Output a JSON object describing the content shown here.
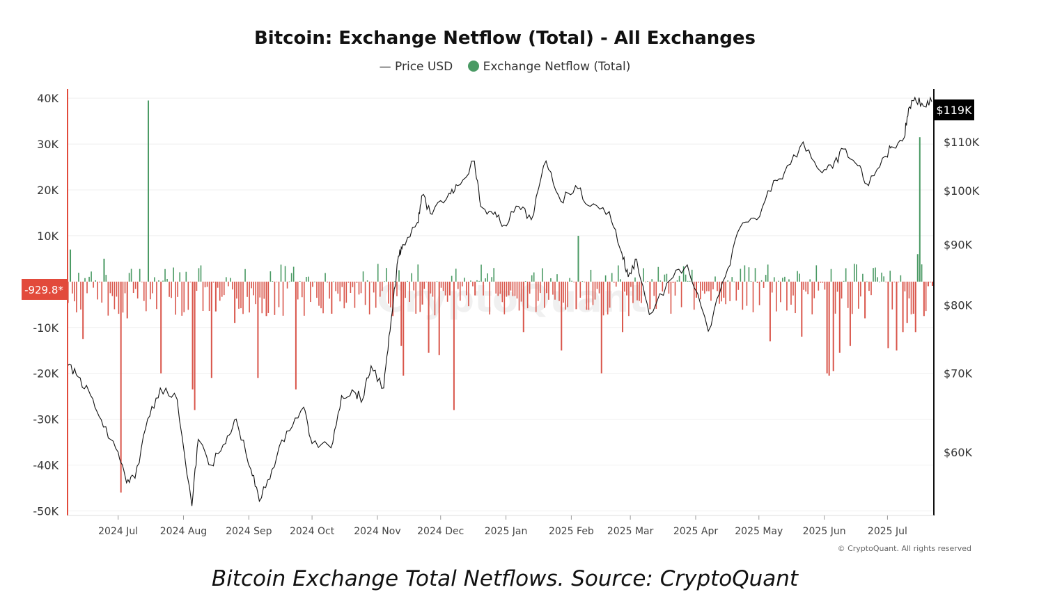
{
  "chart_data": {
    "type": "bar",
    "title": "Bitcoin: Exchange Netflow (Total) - All Exchanges",
    "source_caption": "Bitcoin Exchange Total Netflows. Source: CryptoQuant",
    "copyright": "© CryptoQuant. All rights reserved",
    "watermark": "CryptoQuant",
    "legend": [
      {
        "name": "— Price USD",
        "marker": "line"
      },
      {
        "name": "Exchange Netflow (Total)",
        "marker": "dot"
      }
    ],
    "legend_placement": "top-center",
    "grid": true,
    "x_axis": {
      "ticks": [
        "2024 Jul",
        "2024 Aug",
        "2024 Sep",
        "2024 Oct",
        "2024 Nov",
        "2024 Dec",
        "2025 Jan",
        "2025 Feb",
        "2025 Mar",
        "2025 Apr",
        "2025 May",
        "2025 Jun",
        "2025 Jul"
      ],
      "range": [
        "2024-06-07",
        "2025-07-23"
      ]
    },
    "y_left": {
      "label": "",
      "ticks": [
        "40K",
        "30K",
        "20K",
        "10K",
        "-10K",
        "-20K",
        "-30K",
        "-40K",
        "-50K"
      ],
      "tick_values": [
        40000,
        30000,
        20000,
        10000,
        -10000,
        -20000,
        -30000,
        -40000,
        -50000
      ],
      "range": [
        -51000,
        42000
      ],
      "current_value_label": "-929.8*",
      "current_value": -929.8
    },
    "y_right": {
      "label": "",
      "ticks": [
        "$110K",
        "$100K",
        "$90K",
        "$80K",
        "$70K",
        "$60K"
      ],
      "tick_values": [
        110000,
        100000,
        90000,
        80000,
        70000,
        60000
      ],
      "scale": "log",
      "range": [
        53000,
        122000
      ],
      "current_value_label": "$119K",
      "current_value": 119000
    },
    "series": [
      {
        "name": "Exchange Netflow (Total)",
        "kind": "bar",
        "color_positive": "#4a9a64",
        "color_negative": "#d9554a",
        "x": [
          "2024-06-08",
          "2024-06-14",
          "2024-06-24",
          "2024-07-02",
          "2024-07-05",
          "2024-07-15",
          "2024-07-21",
          "2024-08-05",
          "2024-08-06",
          "2024-08-14",
          "2024-08-16",
          "2024-08-25",
          "2024-09-05",
          "2024-09-09",
          "2024-09-23",
          "2024-10-10",
          "2024-11-08",
          "2024-11-12",
          "2024-11-13",
          "2024-11-22",
          "2024-11-25",
          "2024-11-30",
          "2024-12-05",
          "2024-12-07",
          "2024-12-17",
          "2025-01-02",
          "2025-01-09",
          "2025-01-20",
          "2025-01-27",
          "2025-02-03",
          "2025-02-04",
          "2025-02-15",
          "2025-02-25",
          "2025-02-27",
          "2025-03-10",
          "2025-04-01",
          "2025-04-14",
          "2025-05-06",
          "2025-05-21",
          "2025-06-02",
          "2025-06-03",
          "2025-06-05",
          "2025-06-08",
          "2025-06-13",
          "2025-06-20",
          "2025-07-01",
          "2025-07-05",
          "2025-07-08",
          "2025-07-10",
          "2025-07-13",
          "2025-07-14",
          "2025-07-15",
          "2025-07-16",
          "2025-07-18",
          "2025-07-20",
          "2025-07-22"
        ],
        "values": [
          7000,
          -12500,
          5000,
          -46000,
          -8000,
          39500,
          -20000,
          -23500,
          -28000,
          -21000,
          -6500,
          -9000,
          -21000,
          -7500,
          -23500,
          -7000,
          -7500,
          -14000,
          -20500,
          -5000,
          -15500,
          -16000,
          -3000,
          -28000,
          -3000,
          -3000,
          -11000,
          -2500,
          -15000,
          -6000,
          10000,
          -20000,
          -11000,
          -3000,
          -6000,
          -3500,
          -3500,
          -13000,
          -12000,
          -20000,
          -20500,
          -19500,
          -15500,
          -14000,
          -8000,
          -14500,
          -15000,
          -11000,
          -9000,
          -7000,
          -11000,
          6000,
          31500,
          -7500,
          -1000,
          -929.8
        ]
      },
      {
        "name": "Price USD",
        "kind": "line",
        "color": "#111111",
        "x": [
          "2024-06-07",
          "2024-06-12",
          "2024-06-18",
          "2024-06-24",
          "2024-07-01",
          "2024-07-05",
          "2024-07-09",
          "2024-07-15",
          "2024-07-21",
          "2024-07-29",
          "2024-08-05",
          "2024-08-08",
          "2024-08-14",
          "2024-08-21",
          "2024-08-26",
          "2024-09-02",
          "2024-09-06",
          "2024-09-12",
          "2024-09-19",
          "2024-09-27",
          "2024-10-01",
          "2024-10-10",
          "2024-10-15",
          "2024-10-21",
          "2024-10-25",
          "2024-10-29",
          "2024-11-04",
          "2024-11-07",
          "2024-11-11",
          "2024-11-13",
          "2024-11-20",
          "2024-11-22",
          "2024-11-27",
          "2024-12-05",
          "2024-12-09",
          "2024-12-17",
          "2024-12-20",
          "2024-12-26",
          "2024-12-31",
          "2025-01-07",
          "2025-01-13",
          "2025-01-20",
          "2025-01-27",
          "2025-02-03",
          "2025-02-10",
          "2025-02-19",
          "2025-02-25",
          "2025-02-28",
          "2025-03-04",
          "2025-03-10",
          "2025-03-20",
          "2025-03-28",
          "2025-04-07",
          "2025-04-15",
          "2025-04-22",
          "2025-04-30",
          "2025-05-08",
          "2025-05-13",
          "2025-05-22",
          "2025-05-30",
          "2025-06-05",
          "2025-06-10",
          "2025-06-17",
          "2025-06-22",
          "2025-06-30",
          "2025-07-03",
          "2025-07-09",
          "2025-07-11",
          "2025-07-14",
          "2025-07-18",
          "2025-07-22"
        ],
        "values": [
          71000,
          69500,
          67000,
          63000,
          60000,
          56500,
          57000,
          64000,
          68000,
          66500,
          54000,
          61500,
          58500,
          61000,
          64000,
          58000,
          54500,
          58000,
          62500,
          65500,
          61000,
          60500,
          67000,
          67500,
          66500,
          71000,
          68000,
          76000,
          88000,
          90000,
          94000,
          99000,
          95500,
          99500,
          101000,
          106000,
          97000,
          95500,
          93500,
          97000,
          94500,
          106000,
          98000,
          101000,
          97000,
          96000,
          88500,
          84500,
          87500,
          78500,
          84000,
          86500,
          76000,
          84500,
          93000,
          94500,
          102000,
          103500,
          110000,
          104000,
          104500,
          108500,
          105000,
          101000,
          107000,
          109000,
          111000,
          117500,
          120000,
          118000,
          119000
        ]
      }
    ],
    "current_price_label": "$119K"
  }
}
